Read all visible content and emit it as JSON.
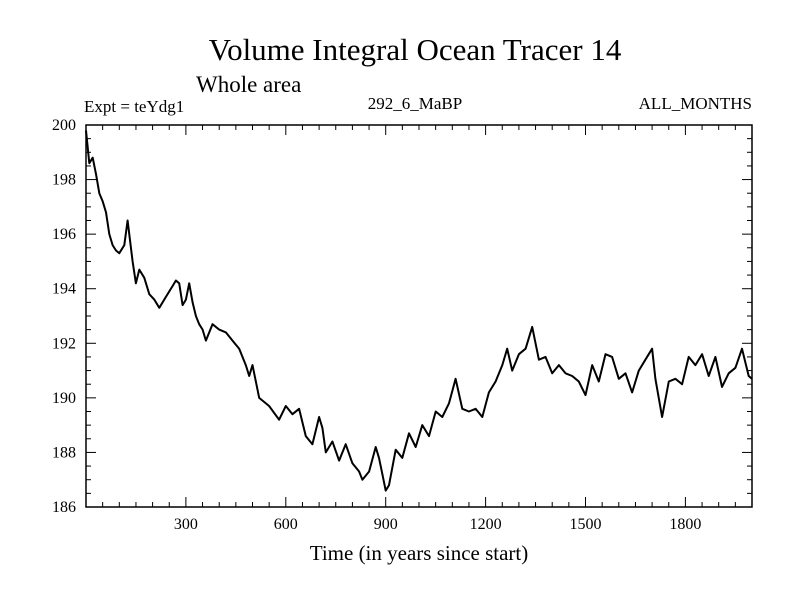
{
  "chart_data": {
    "type": "line",
    "title": "Volume Integral Ocean Tracer 14",
    "subtitle": "Whole area",
    "experiment_label": "Expt = teYdg1",
    "run_label": "292_6_MaBP",
    "months_label": "ALL_MONTHS",
    "xlabel": "Time (in years since start)",
    "ylabel": "",
    "xlim": [
      0,
      2000
    ],
    "ylim": [
      186,
      200
    ],
    "x_ticks": [
      300,
      600,
      900,
      1200,
      1500,
      1800
    ],
    "y_ticks": [
      186,
      188,
      190,
      192,
      194,
      196,
      198,
      200
    ],
    "grid": false,
    "line_color": "#000000",
    "series": [
      {
        "name": "Tracer 14",
        "x": [
          0,
          10,
          20,
          30,
          40,
          50,
          60,
          70,
          80,
          90,
          100,
          115,
          125,
          140,
          150,
          160,
          175,
          190,
          205,
          220,
          240,
          260,
          270,
          280,
          290,
          300,
          310,
          320,
          330,
          340,
          350,
          360,
          380,
          400,
          420,
          440,
          460,
          480,
          490,
          500,
          520,
          550,
          580,
          600,
          620,
          640,
          660,
          680,
          700,
          710,
          720,
          740,
          760,
          780,
          800,
          820,
          830,
          850,
          870,
          880,
          890,
          900,
          910,
          930,
          950,
          970,
          990,
          1010,
          1030,
          1050,
          1070,
          1090,
          1110,
          1130,
          1150,
          1170,
          1190,
          1210,
          1230,
          1250,
          1265,
          1280,
          1300,
          1320,
          1340,
          1360,
          1380,
          1400,
          1420,
          1440,
          1460,
          1480,
          1500,
          1520,
          1540,
          1560,
          1580,
          1600,
          1620,
          1640,
          1660,
          1680,
          1700,
          1710,
          1730,
          1750,
          1770,
          1790,
          1810,
          1830,
          1850,
          1870,
          1890,
          1910,
          1930,
          1950,
          1970,
          1990,
          2000
        ],
        "y": [
          199.8,
          198.6,
          198.8,
          198.2,
          197.5,
          197.2,
          196.8,
          196.0,
          195.6,
          195.4,
          195.3,
          195.6,
          196.5,
          195.0,
          194.2,
          194.7,
          194.4,
          193.8,
          193.6,
          193.3,
          193.7,
          194.1,
          194.3,
          194.2,
          193.4,
          193.6,
          194.2,
          193.5,
          193.0,
          192.7,
          192.5,
          192.1,
          192.7,
          192.5,
          192.4,
          192.1,
          191.8,
          191.2,
          190.8,
          191.2,
          190.0,
          189.7,
          189.2,
          189.7,
          189.4,
          189.6,
          188.6,
          188.3,
          189.3,
          188.9,
          188.0,
          188.4,
          187.7,
          188.3,
          187.6,
          187.3,
          187.0,
          187.3,
          188.2,
          187.8,
          187.2,
          186.6,
          186.8,
          188.1,
          187.8,
          188.7,
          188.2,
          189.0,
          188.6,
          189.5,
          189.3,
          189.8,
          190.7,
          189.6,
          189.5,
          189.6,
          189.3,
          190.2,
          190.6,
          191.2,
          191.8,
          191.0,
          191.6,
          191.8,
          192.6,
          191.4,
          191.5,
          190.9,
          191.2,
          190.9,
          190.8,
          190.6,
          190.1,
          191.2,
          190.6,
          191.6,
          191.5,
          190.7,
          190.9,
          190.2,
          191.0,
          191.4,
          191.8,
          190.7,
          189.3,
          190.6,
          190.7,
          190.5,
          191.5,
          191.2,
          191.6,
          190.8,
          191.5,
          190.4,
          190.9,
          191.1,
          191.8,
          190.8,
          190.7
        ]
      }
    ]
  }
}
